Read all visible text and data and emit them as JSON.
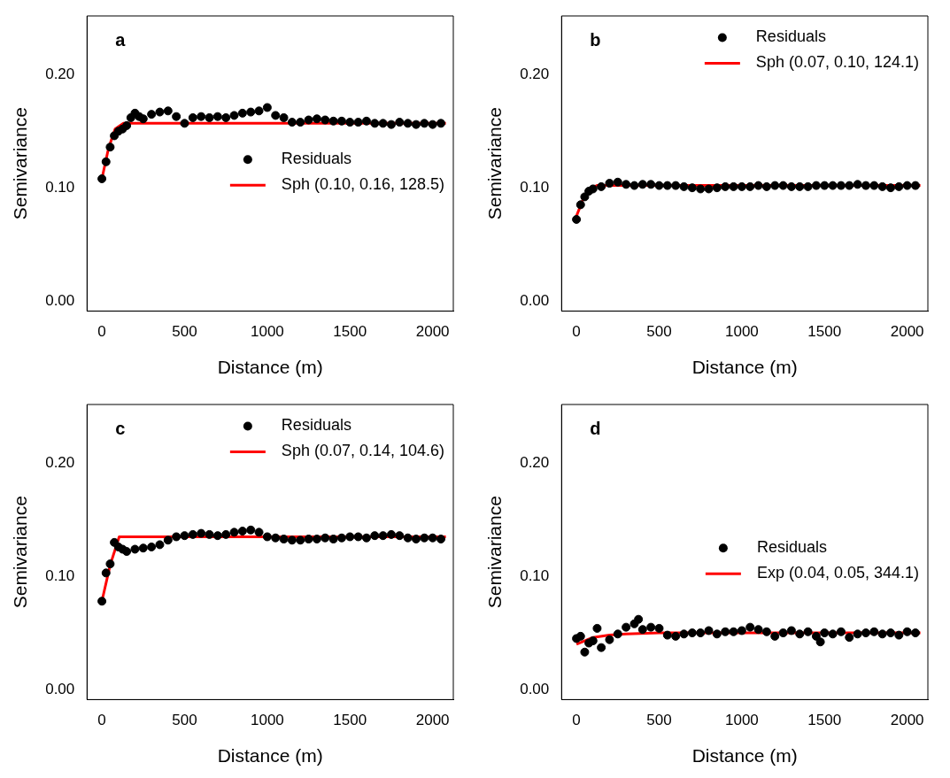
{
  "chart_data": [
    {
      "type": "scatter",
      "title": "a",
      "xlabel": "Distance (m)",
      "ylabel": "Semivariance",
      "xlim": [
        -90,
        2125
      ],
      "xticks": [
        0,
        500,
        1000,
        1500,
        2000
      ],
      "ylim": [
        -0.009,
        0.252
      ],
      "yticks": [
        {
          "value": 0,
          "label": "0.00"
        },
        {
          "value": 0.1,
          "label": "0.10"
        },
        {
          "value": 0.2,
          "label": "0.20"
        }
      ],
      "legend": "right",
      "marker": "circle",
      "series": [
        {
          "name": "Residuals",
          "color": "#000000",
          "x": [
            0,
            25,
            50,
            75,
            100,
            125,
            150,
            175,
            200,
            225,
            250,
            300,
            350,
            400,
            450,
            500,
            550,
            600,
            650,
            700,
            750,
            800,
            850,
            900,
            950,
            1000,
            1050,
            1100,
            1150,
            1200,
            1250,
            1300,
            1350,
            1400,
            1450,
            1500,
            1550,
            1600,
            1650,
            1700,
            1750,
            1800,
            1850,
            1900,
            1950,
            2000,
            2050
          ],
          "values": [
            0.108,
            0.123,
            0.136,
            0.146,
            0.15,
            0.152,
            0.155,
            0.162,
            0.166,
            0.163,
            0.161,
            0.165,
            0.167,
            0.168,
            0.163,
            0.157,
            0.162,
            0.163,
            0.162,
            0.163,
            0.162,
            0.164,
            0.166,
            0.167,
            0.168,
            0.171,
            0.164,
            0.162,
            0.158,
            0.158,
            0.16,
            0.161,
            0.16,
            0.159,
            0.159,
            0.158,
            0.158,
            0.159,
            0.157,
            0.157,
            0.156,
            0.158,
            0.157,
            0.156,
            0.157,
            0.156,
            0.157
          ]
        },
        {
          "name": "Sph (0.10, 0.16, 128.5)",
          "type": "line",
          "marker": "none",
          "color": "#ff0000",
          "x": [
            0,
            40,
            80,
            128.5,
            2080
          ],
          "values": [
            0.108,
            0.135,
            0.152,
            0.157,
            0.157
          ]
        }
      ]
    },
    {
      "type": "scatter",
      "title": "b",
      "xlabel": "Distance (m)",
      "ylabel": "Semivariance",
      "xlim": [
        -90,
        2125
      ],
      "xticks": [
        0,
        500,
        1000,
        1500,
        2000
      ],
      "ylim": [
        -0.009,
        0.252
      ],
      "yticks": [
        {
          "value": 0,
          "label": "0.00"
        },
        {
          "value": 0.1,
          "label": "0.10"
        },
        {
          "value": 0.2,
          "label": "0.20"
        }
      ],
      "legend": "top right",
      "marker": "circle",
      "series": [
        {
          "name": "Residuals",
          "color": "#000000",
          "x": [
            0,
            25,
            50,
            75,
            100,
            150,
            200,
            250,
            300,
            350,
            400,
            450,
            500,
            550,
            600,
            650,
            700,
            750,
            800,
            850,
            900,
            950,
            1000,
            1050,
            1100,
            1150,
            1200,
            1250,
            1300,
            1350,
            1400,
            1450,
            1500,
            1550,
            1600,
            1650,
            1700,
            1750,
            1800,
            1850,
            1900,
            1950,
            2000,
            2050
          ],
          "values": [
            0.072,
            0.085,
            0.092,
            0.097,
            0.099,
            0.101,
            0.104,
            0.105,
            0.103,
            0.102,
            0.103,
            0.103,
            0.102,
            0.102,
            0.102,
            0.101,
            0.1,
            0.099,
            0.099,
            0.1,
            0.101,
            0.101,
            0.101,
            0.101,
            0.102,
            0.101,
            0.102,
            0.102,
            0.101,
            0.101,
            0.101,
            0.102,
            0.102,
            0.102,
            0.102,
            0.102,
            0.103,
            0.102,
            0.102,
            0.101,
            0.1,
            0.101,
            0.102,
            0.102
          ]
        },
        {
          "name": "Sph (0.07, 0.10, 124.1)",
          "type": "line",
          "marker": "none",
          "color": "#ff0000",
          "x": [
            0,
            40,
            80,
            124.1,
            2080
          ],
          "values": [
            0.075,
            0.09,
            0.099,
            0.102,
            0.102
          ]
        }
      ]
    },
    {
      "type": "scatter",
      "title": "c",
      "xlabel": "Distance (m)",
      "ylabel": "Semivariance",
      "xlim": [
        -90,
        2125
      ],
      "xticks": [
        0,
        500,
        1000,
        1500,
        2000
      ],
      "ylim": [
        -0.009,
        0.252
      ],
      "yticks": [
        {
          "value": 0,
          "label": "0.00"
        },
        {
          "value": 0.1,
          "label": "0.10"
        },
        {
          "value": 0.2,
          "label": "0.20"
        }
      ],
      "legend": "top right",
      "marker": "circle",
      "series": [
        {
          "name": "Residuals",
          "color": "#000000",
          "x": [
            0,
            25,
            50,
            75,
            100,
            125,
            150,
            200,
            250,
            300,
            350,
            400,
            450,
            500,
            550,
            600,
            650,
            700,
            750,
            800,
            850,
            900,
            950,
            1000,
            1050,
            1100,
            1150,
            1200,
            1250,
            1300,
            1350,
            1400,
            1450,
            1500,
            1550,
            1600,
            1650,
            1700,
            1750,
            1800,
            1850,
            1900,
            1950,
            2000,
            2050
          ],
          "values": [
            0.078,
            0.103,
            0.111,
            0.13,
            0.126,
            0.124,
            0.122,
            0.124,
            0.125,
            0.126,
            0.128,
            0.132,
            0.135,
            0.136,
            0.137,
            0.138,
            0.137,
            0.136,
            0.137,
            0.139,
            0.14,
            0.141,
            0.139,
            0.135,
            0.134,
            0.133,
            0.132,
            0.132,
            0.133,
            0.133,
            0.134,
            0.133,
            0.134,
            0.135,
            0.135,
            0.134,
            0.136,
            0.136,
            0.137,
            0.136,
            0.134,
            0.133,
            0.134,
            0.134,
            0.133
          ]
        },
        {
          "name": "Sph (0.07, 0.14, 104.6)",
          "type": "line",
          "marker": "none",
          "color": "#ff0000",
          "x": [
            0,
            50,
            104.6,
            2080
          ],
          "values": [
            0.078,
            0.11,
            0.135,
            0.135
          ]
        }
      ]
    },
    {
      "type": "scatter",
      "title": "d",
      "xlabel": "Distance (m)",
      "ylabel": "Semivariance",
      "xlim": [
        -90,
        2125
      ],
      "xticks": [
        0,
        500,
        1000,
        1500,
        2000
      ],
      "ylim": [
        -0.009,
        0.252
      ],
      "yticks": [
        {
          "value": 0,
          "label": "0.00"
        },
        {
          "value": 0.1,
          "label": "0.10"
        },
        {
          "value": 0.2,
          "label": "0.20"
        }
      ],
      "legend": "right",
      "marker": "circle",
      "series": [
        {
          "name": "Residuals",
          "color": "#000000",
          "x": [
            0,
            25,
            50,
            75,
            100,
            125,
            150,
            200,
            250,
            300,
            350,
            375,
            400,
            450,
            500,
            550,
            600,
            650,
            700,
            750,
            800,
            850,
            900,
            950,
            1000,
            1050,
            1100,
            1150,
            1200,
            1250,
            1300,
            1350,
            1400,
            1450,
            1475,
            1500,
            1550,
            1600,
            1650,
            1700,
            1750,
            1800,
            1850,
            1900,
            1950,
            2000,
            2050
          ],
          "values": [
            0.045,
            0.047,
            0.033,
            0.041,
            0.043,
            0.054,
            0.037,
            0.044,
            0.049,
            0.055,
            0.058,
            0.062,
            0.053,
            0.055,
            0.054,
            0.048,
            0.047,
            0.049,
            0.05,
            0.05,
            0.052,
            0.049,
            0.051,
            0.051,
            0.052,
            0.055,
            0.053,
            0.051,
            0.047,
            0.05,
            0.052,
            0.049,
            0.051,
            0.047,
            0.042,
            0.05,
            0.049,
            0.051,
            0.046,
            0.049,
            0.05,
            0.051,
            0.049,
            0.05,
            0.048,
            0.051,
            0.05
          ]
        },
        {
          "name": "Exp (0.04, 0.05, 344.1)",
          "type": "line",
          "marker": "none",
          "color": "#ff0000",
          "x": [
            0,
            100,
            200,
            300,
            500,
            2080
          ],
          "values": [
            0.04,
            0.046,
            0.048,
            0.049,
            0.05,
            0.05
          ]
        }
      ]
    }
  ]
}
